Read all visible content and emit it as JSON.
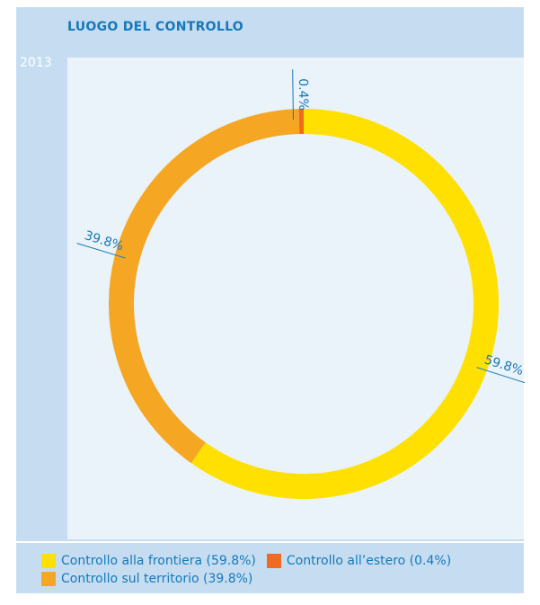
{
  "chart_data": {
    "type": "donut",
    "title": "LUOGO DEL CONTROLLO",
    "subtitle": "2013",
    "categories": [
      "Controllo alla frontiera (59.8%)",
      "Controllo all’estero (0.4%)",
      "Controllo sul territorio (39.8%)"
    ],
    "values": [
      59.8,
      0.4,
      39.8
    ],
    "value_labels": [
      "59.8%",
      "0.4%",
      "39.8%"
    ],
    "colors": [
      "#ffe000",
      "#f26a21",
      "#f5a623"
    ],
    "legend": "bottom"
  }
}
